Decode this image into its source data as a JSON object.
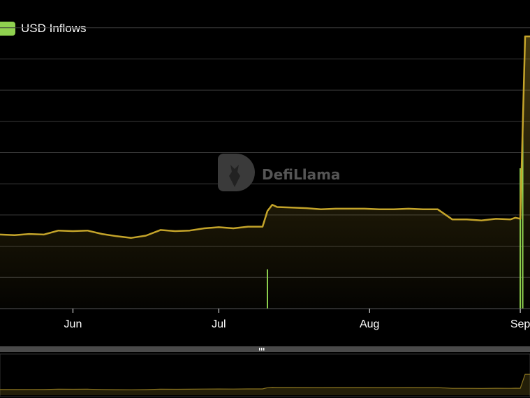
{
  "legend": {
    "label": "USD Inflows",
    "color": "#8fd14f"
  },
  "watermark": {
    "text": "DefiLlama"
  },
  "colors": {
    "line": "#c4a42a",
    "bar": "#8fd14f",
    "grid": "#3a3a3a",
    "axis": "#ffffff",
    "slider": "#4a4a4a"
  },
  "chart_data": {
    "type": "line",
    "x_ticks": [
      {
        "date": "2023-06-01",
        "label": "Jun"
      },
      {
        "date": "2023-07-01",
        "label": "Jul"
      },
      {
        "date": "2023-08-01",
        "label": "Aug"
      },
      {
        "date": "2023-09-01",
        "label": "Sep"
      }
    ],
    "x_range": [
      "2023-05-17",
      "2023-09-03"
    ],
    "grid": true,
    "legend_position": "top-left",
    "series": [
      {
        "kind": "area-line",
        "x": [
          "2023-05-17",
          "2023-05-20",
          "2023-05-23",
          "2023-05-26",
          "2023-05-29",
          "2023-06-01",
          "2023-06-04",
          "2023-06-07",
          "2023-06-10",
          "2023-06-13",
          "2023-06-16",
          "2023-06-19",
          "2023-06-22",
          "2023-06-25",
          "2023-06-28",
          "2023-07-01",
          "2023-07-04",
          "2023-07-07",
          "2023-07-10",
          "2023-07-11",
          "2023-07-12",
          "2023-07-13",
          "2023-07-16",
          "2023-07-19",
          "2023-07-22",
          "2023-07-25",
          "2023-07-28",
          "2023-07-31",
          "2023-08-03",
          "2023-08-06",
          "2023-08-09",
          "2023-08-12",
          "2023-08-15",
          "2023-08-18",
          "2023-08-21",
          "2023-08-24",
          "2023-08-27",
          "2023-08-30",
          "2023-08-31",
          "2023-09-01",
          "2023-09-02",
          "2023-09-03"
        ],
        "values": [
          13.2,
          13.1,
          13.3,
          13.2,
          13.9,
          13.8,
          13.9,
          13.3,
          12.9,
          12.6,
          13.0,
          14.0,
          13.8,
          13.9,
          14.3,
          14.5,
          14.3,
          14.6,
          14.6,
          17.4,
          18.5,
          18.1,
          18.0,
          17.9,
          17.7,
          17.8,
          17.8,
          17.8,
          17.7,
          17.7,
          17.8,
          17.7,
          17.7,
          15.9,
          15.9,
          15.7,
          16.0,
          15.9,
          16.2,
          16.0,
          48.5,
          48.5
        ]
      },
      {
        "kind": "bars",
        "x": [
          "2023-07-11",
          "2023-09-01",
          "2023-09-01T12"
        ],
        "values": [
          7,
          25,
          33
        ]
      }
    ],
    "ylim": [
      0,
      50
    ]
  }
}
